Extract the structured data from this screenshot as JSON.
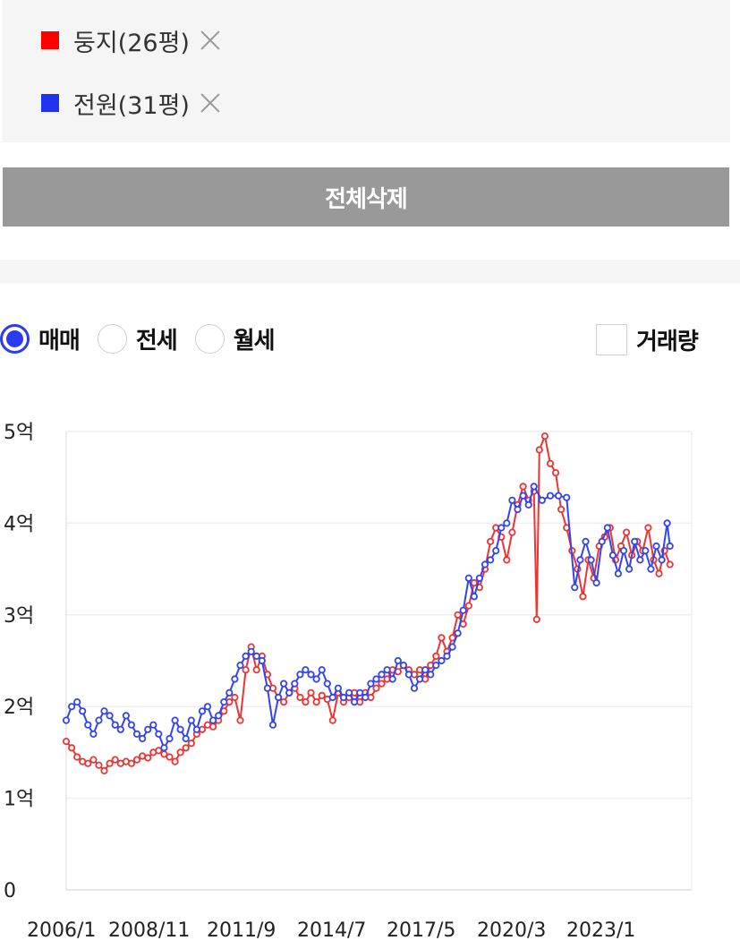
{
  "legend": {
    "items": [
      {
        "label": "둥지(26평)",
        "color": "#ff0000"
      },
      {
        "label": "전원(31평)",
        "color": "#2233ee"
      }
    ]
  },
  "delete_all_label": "전체삭제",
  "options": {
    "radios": [
      {
        "label": "매매",
        "checked": true
      },
      {
        "label": "전세",
        "checked": false
      },
      {
        "label": "월세",
        "checked": false
      }
    ],
    "volume_label": "거래량",
    "volume_checked": false
  },
  "chart_data": {
    "type": "line",
    "x_tick_labels": [
      "2006/1",
      "2008/11",
      "2011/9",
      "2014/7",
      "2017/5",
      "2020/3",
      "2023/1"
    ],
    "y_tick_labels": [
      "0",
      "1억",
      "2억",
      "3억",
      "4억",
      "5억"
    ],
    "ylim": [
      0,
      5
    ],
    "y_unit": "억",
    "grid": true,
    "series": [
      {
        "name": "둥지(26평)",
        "color": "#ee3333",
        "points": [
          [
            2006.0,
            1.62
          ],
          [
            2006.2,
            1.55
          ],
          [
            2006.4,
            1.45
          ],
          [
            2006.6,
            1.4
          ],
          [
            2006.8,
            1.38
          ],
          [
            2007.0,
            1.42
          ],
          [
            2007.2,
            1.36
          ],
          [
            2007.4,
            1.3
          ],
          [
            2007.6,
            1.38
          ],
          [
            2007.8,
            1.42
          ],
          [
            2008.0,
            1.38
          ],
          [
            2008.2,
            1.4
          ],
          [
            2008.4,
            1.38
          ],
          [
            2008.6,
            1.42
          ],
          [
            2008.8,
            1.46
          ],
          [
            2009.0,
            1.44
          ],
          [
            2009.2,
            1.5
          ],
          [
            2009.4,
            1.52
          ],
          [
            2009.6,
            1.48
          ],
          [
            2009.8,
            1.45
          ],
          [
            2010.0,
            1.4
          ],
          [
            2010.2,
            1.5
          ],
          [
            2010.4,
            1.55
          ],
          [
            2010.6,
            1.6
          ],
          [
            2010.8,
            1.7
          ],
          [
            2011.0,
            1.75
          ],
          [
            2011.2,
            1.8
          ],
          [
            2011.4,
            1.78
          ],
          [
            2011.6,
            1.85
          ],
          [
            2011.8,
            1.95
          ],
          [
            2012.0,
            2.05
          ],
          [
            2012.2,
            2.1
          ],
          [
            2012.4,
            1.85
          ],
          [
            2012.6,
            2.4
          ],
          [
            2012.8,
            2.65
          ],
          [
            2013.0,
            2.4
          ],
          [
            2013.2,
            2.55
          ],
          [
            2013.4,
            2.35
          ],
          [
            2013.6,
            2.2
          ],
          [
            2013.8,
            2.1
          ],
          [
            2014.0,
            2.05
          ],
          [
            2014.2,
            2.15
          ],
          [
            2014.4,
            2.2
          ],
          [
            2014.6,
            2.1
          ],
          [
            2014.8,
            2.05
          ],
          [
            2015.0,
            2.15
          ],
          [
            2015.2,
            2.05
          ],
          [
            2015.4,
            2.12
          ],
          [
            2015.6,
            2.08
          ],
          [
            2015.8,
            1.85
          ],
          [
            2016.0,
            2.15
          ],
          [
            2016.2,
            2.05
          ],
          [
            2016.4,
            2.1
          ],
          [
            2016.6,
            2.15
          ],
          [
            2016.8,
            2.05
          ],
          [
            2017.0,
            2.15
          ],
          [
            2017.2,
            2.1
          ],
          [
            2017.4,
            2.2
          ],
          [
            2017.6,
            2.25
          ],
          [
            2017.8,
            2.3
          ],
          [
            2018.0,
            2.4
          ],
          [
            2018.2,
            2.38
          ],
          [
            2018.4,
            2.45
          ],
          [
            2018.6,
            2.4
          ],
          [
            2018.8,
            2.35
          ],
          [
            2019.0,
            2.4
          ],
          [
            2019.2,
            2.3
          ],
          [
            2019.4,
            2.45
          ],
          [
            2019.6,
            2.55
          ],
          [
            2019.8,
            2.75
          ],
          [
            2020.0,
            2.6
          ],
          [
            2020.2,
            2.75
          ],
          [
            2020.4,
            3.0
          ],
          [
            2020.6,
            2.9
          ],
          [
            2020.8,
            3.1
          ],
          [
            2021.0,
            3.35
          ],
          [
            2021.2,
            3.3
          ],
          [
            2021.4,
            3.5
          ],
          [
            2021.6,
            3.8
          ],
          [
            2021.8,
            3.95
          ],
          [
            2022.0,
            3.85
          ],
          [
            2022.2,
            3.6
          ],
          [
            2022.4,
            3.9
          ],
          [
            2022.6,
            4.2
          ],
          [
            2022.8,
            4.4
          ],
          [
            2023.0,
            4.25
          ],
          [
            2023.2,
            4.35
          ],
          [
            2023.3,
            2.95
          ],
          [
            2023.4,
            4.8
          ],
          [
            2023.6,
            4.95
          ],
          [
            2023.8,
            4.65
          ],
          [
            2024.0,
            4.55
          ],
          [
            2024.2,
            4.15
          ],
          [
            2024.4,
            3.95
          ],
          [
            2024.6,
            3.7
          ],
          [
            2024.8,
            3.5
          ],
          [
            2025.0,
            3.2
          ],
          [
            2025.2,
            3.6
          ],
          [
            2025.4,
            3.4
          ],
          [
            2025.6,
            3.75
          ],
          [
            2025.8,
            3.85
          ],
          [
            2026.0,
            3.95
          ],
          [
            2026.2,
            3.6
          ],
          [
            2026.4,
            3.75
          ],
          [
            2026.6,
            3.9
          ],
          [
            2026.8,
            3.65
          ],
          [
            2027.0,
            3.8
          ],
          [
            2027.2,
            3.7
          ],
          [
            2027.4,
            3.95
          ],
          [
            2027.6,
            3.6
          ],
          [
            2027.8,
            3.45
          ],
          [
            2028.0,
            3.7
          ],
          [
            2028.2,
            3.55
          ]
        ]
      },
      {
        "name": "전원(31평)",
        "color": "#3344ee",
        "points": [
          [
            2006.0,
            1.85
          ],
          [
            2006.2,
            2.0
          ],
          [
            2006.4,
            2.05
          ],
          [
            2006.6,
            1.95
          ],
          [
            2006.8,
            1.8
          ],
          [
            2007.0,
            1.7
          ],
          [
            2007.2,
            1.85
          ],
          [
            2007.4,
            1.95
          ],
          [
            2007.6,
            1.9
          ],
          [
            2007.8,
            1.8
          ],
          [
            2008.0,
            1.75
          ],
          [
            2008.2,
            1.9
          ],
          [
            2008.4,
            1.8
          ],
          [
            2008.6,
            1.7
          ],
          [
            2008.8,
            1.65
          ],
          [
            2009.0,
            1.75
          ],
          [
            2009.2,
            1.8
          ],
          [
            2009.4,
            1.7
          ],
          [
            2009.6,
            1.55
          ],
          [
            2009.8,
            1.65
          ],
          [
            2010.0,
            1.85
          ],
          [
            2010.2,
            1.75
          ],
          [
            2010.4,
            1.65
          ],
          [
            2010.6,
            1.85
          ],
          [
            2010.8,
            1.75
          ],
          [
            2011.0,
            1.95
          ],
          [
            2011.2,
            2.0
          ],
          [
            2011.4,
            1.85
          ],
          [
            2011.6,
            1.9
          ],
          [
            2011.8,
            2.05
          ],
          [
            2012.0,
            2.15
          ],
          [
            2012.2,
            2.3
          ],
          [
            2012.4,
            2.45
          ],
          [
            2012.6,
            2.55
          ],
          [
            2012.8,
            2.6
          ],
          [
            2013.0,
            2.55
          ],
          [
            2013.2,
            2.5
          ],
          [
            2013.4,
            2.2
          ],
          [
            2013.6,
            1.8
          ],
          [
            2013.8,
            2.1
          ],
          [
            2014.0,
            2.25
          ],
          [
            2014.2,
            2.15
          ],
          [
            2014.4,
            2.25
          ],
          [
            2014.6,
            2.35
          ],
          [
            2014.8,
            2.4
          ],
          [
            2015.0,
            2.35
          ],
          [
            2015.2,
            2.3
          ],
          [
            2015.4,
            2.4
          ],
          [
            2015.6,
            2.25
          ],
          [
            2015.8,
            2.1
          ],
          [
            2016.0,
            2.2
          ],
          [
            2016.2,
            2.1
          ],
          [
            2016.4,
            2.15
          ],
          [
            2016.6,
            2.05
          ],
          [
            2016.8,
            2.15
          ],
          [
            2017.0,
            2.1
          ],
          [
            2017.2,
            2.25
          ],
          [
            2017.4,
            2.3
          ],
          [
            2017.6,
            2.35
          ],
          [
            2017.8,
            2.4
          ],
          [
            2018.0,
            2.3
          ],
          [
            2018.2,
            2.5
          ],
          [
            2018.4,
            2.45
          ],
          [
            2018.6,
            2.35
          ],
          [
            2018.8,
            2.2
          ],
          [
            2019.0,
            2.3
          ],
          [
            2019.2,
            2.4
          ],
          [
            2019.4,
            2.35
          ],
          [
            2019.6,
            2.45
          ],
          [
            2019.8,
            2.5
          ],
          [
            2020.0,
            2.55
          ],
          [
            2020.2,
            2.65
          ],
          [
            2020.4,
            2.8
          ],
          [
            2020.6,
            3.05
          ],
          [
            2020.8,
            3.4
          ],
          [
            2021.0,
            3.2
          ],
          [
            2021.2,
            3.4
          ],
          [
            2021.4,
            3.55
          ],
          [
            2021.6,
            3.6
          ],
          [
            2021.8,
            3.7
          ],
          [
            2022.0,
            3.95
          ],
          [
            2022.2,
            4.0
          ],
          [
            2022.4,
            4.25
          ],
          [
            2022.6,
            4.15
          ],
          [
            2022.8,
            4.3
          ],
          [
            2023.0,
            4.2
          ],
          [
            2023.2,
            4.4
          ],
          [
            2023.5,
            4.25
          ],
          [
            2023.8,
            4.3
          ],
          [
            2024.1,
            4.3
          ],
          [
            2024.4,
            4.28
          ],
          [
            2024.7,
            3.3
          ],
          [
            2024.9,
            3.6
          ],
          [
            2025.1,
            3.8
          ],
          [
            2025.3,
            3.6
          ],
          [
            2025.5,
            3.35
          ],
          [
            2025.7,
            3.8
          ],
          [
            2025.9,
            3.95
          ],
          [
            2026.1,
            3.65
          ],
          [
            2026.3,
            3.45
          ],
          [
            2026.5,
            3.7
          ],
          [
            2026.7,
            3.5
          ],
          [
            2026.9,
            3.8
          ],
          [
            2027.1,
            3.6
          ],
          [
            2027.3,
            3.7
          ],
          [
            2027.5,
            3.5
          ],
          [
            2027.7,
            3.75
          ],
          [
            2027.9,
            3.6
          ],
          [
            2028.1,
            4.0
          ],
          [
            2028.2,
            3.75
          ]
        ]
      }
    ]
  }
}
